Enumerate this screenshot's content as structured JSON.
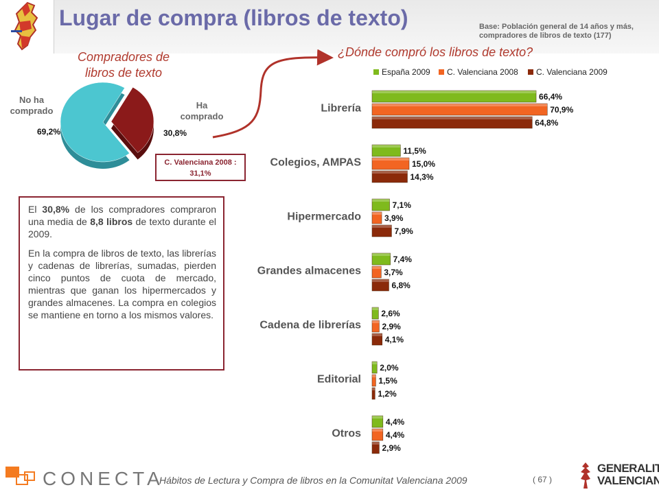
{
  "header": {
    "title": "Lugar de compra (libros de texto)",
    "base_note": "Base: Población general de 14 años y más, compradores de libros de texto (177)"
  },
  "pie": {
    "title_line1": "Compradores de",
    "title_line2": "libros de texto",
    "slices": [
      {
        "label_line1": "No ha",
        "label_line2": "comprado",
        "value": 69.2,
        "value_label": "69,2%",
        "color": "#4cc6d0"
      },
      {
        "label_line1": "Ha",
        "label_line2": "comprado",
        "value": 30.8,
        "value_label": "30,8%",
        "color": "#8b1a1a"
      }
    ],
    "comparison_line1": "C. Valenciana 2008 :",
    "comparison_line2": "31,1%"
  },
  "text_box": {
    "p1_a": "El ",
    "p1_b": "30,8%",
    "p1_c": " de los compradores compraron una media de ",
    "p1_d": "8,8 libros",
    "p1_e": " de texto durante el 2009.",
    "p2": "En la compra de libros de texto, las librerías y cadenas de librerías, sumadas, pierden cinco puntos de cuota de mercado, mientras que ganan los hipermercados y grandes almacenes. La compra en colegios se mantiene en torno a los mismos valores."
  },
  "chart_data": {
    "type": "bar",
    "orientation": "horizontal",
    "title": "¿Dónde compró los libros de texto?",
    "legend_position": "top",
    "categories": [
      "Librería",
      "Colegios, AMPAS",
      "Hipermercado",
      "Grandes almacenes",
      "Cadena de librerías",
      "Editorial",
      "Otros"
    ],
    "series": [
      {
        "name": "España 2009",
        "color": "#7fba1d",
        "values": [
          66.4,
          11.5,
          7.1,
          7.4,
          2.6,
          2.0,
          4.4
        ],
        "labels": [
          "66,4%",
          "11,5%",
          "7,1%",
          "7,4%",
          "2,6%",
          "2,0%",
          "4,4%"
        ]
      },
      {
        "name": "C. Valenciana 2008",
        "color": "#f26522",
        "values": [
          70.9,
          15.0,
          3.9,
          3.7,
          2.9,
          1.5,
          4.4
        ],
        "labels": [
          "70,9%",
          "15,0%",
          "3,9%",
          "3,7%",
          "2,9%",
          "1,5%",
          "4,4%"
        ]
      },
      {
        "name": "C. Valenciana 2009",
        "color": "#8b2a0a",
        "values": [
          64.8,
          14.3,
          7.9,
          6.8,
          4.1,
          1.2,
          2.9
        ],
        "labels": [
          "64,8%",
          "14,3%",
          "7,9%",
          "6,8%",
          "4,1%",
          "1,2%",
          "2,9%"
        ]
      }
    ],
    "xlim": [
      0,
      100
    ],
    "grid": false
  },
  "footer": {
    "brand": "CONECTA",
    "caption": "Hábitos de Lectura y Compra de libros en la Comunitat Valenciana 2009",
    "page": "( 67 )",
    "gv_line1": "GENERALITAT",
    "gv_line2": "VALENCIANA"
  }
}
